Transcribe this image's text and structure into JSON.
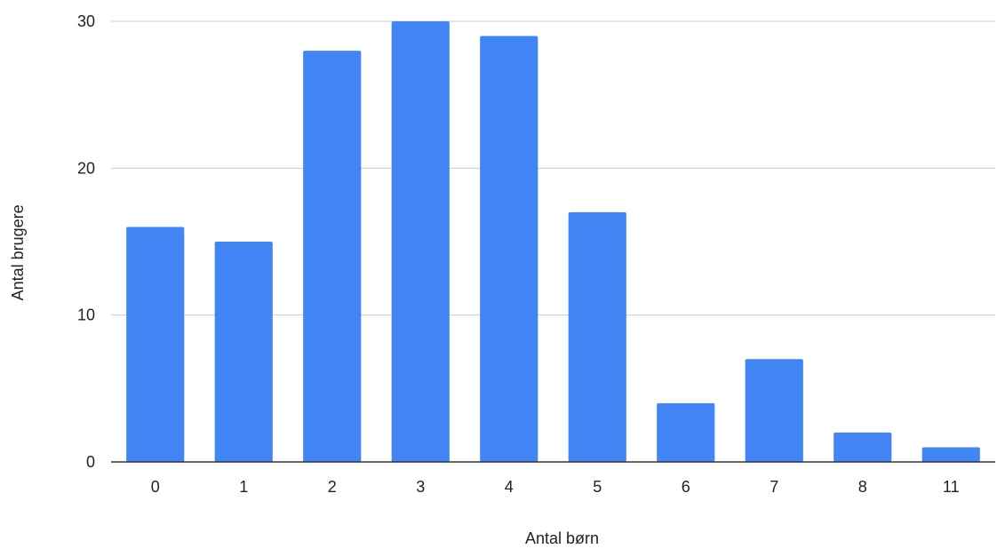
{
  "chart_data": {
    "type": "bar",
    "title": "",
    "xlabel": "Antal børn",
    "ylabel": "Antal brugere",
    "categories": [
      "0",
      "1",
      "2",
      "3",
      "4",
      "5",
      "6",
      "7",
      "8",
      "11"
    ],
    "series": [
      {
        "values": [
          16,
          15,
          28,
          30,
          29,
          17,
          4,
          7,
          2,
          1
        ]
      }
    ],
    "ylim": [
      0,
      30
    ],
    "yticks": [
      0,
      10,
      20,
      30
    ],
    "grid": true,
    "legend": "none",
    "colors": {
      "bar": "#4285f4",
      "grid": "#cccccc",
      "baseline": "#333333",
      "text": "#222222"
    }
  }
}
